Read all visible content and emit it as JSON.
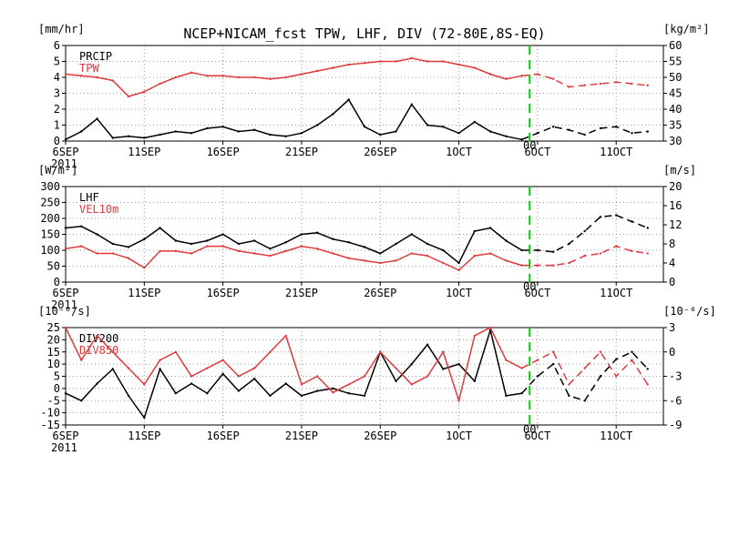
{
  "title": "NCEP+NICAM_fcst TPW, LHF, DIV (72-80E,8S-EQ)",
  "colors": {
    "black": "#000000",
    "red": "#e0393e",
    "forecast_line": "#00cc00"
  },
  "x_ticks": [
    "6SEP",
    "11SEP",
    "16SEP",
    "21SEP",
    "26SEP",
    "1OCT",
    "6OCT",
    "11OCT"
  ],
  "x_year": "2011",
  "forecast_label": "00",
  "chart_data": [
    {
      "type": "line",
      "left_unit": "[mm/hr]",
      "right_unit": "[kg/m²]",
      "left_ylim": [
        0,
        6
      ],
      "left_ticks": [
        "0",
        "1",
        "2",
        "3",
        "4",
        "5",
        "6"
      ],
      "right_ylim": [
        30,
        60
      ],
      "right_ticks": [
        "30",
        "35",
        "40",
        "45",
        "50",
        "55",
        "60"
      ],
      "x": [
        "6SEP",
        "7SEP",
        "8SEP",
        "9SEP",
        "10SEP",
        "11SEP",
        "12SEP",
        "13SEP",
        "14SEP",
        "15SEP",
        "16SEP",
        "17SEP",
        "18SEP",
        "19SEP",
        "20SEP",
        "21SEP",
        "22SEP",
        "23SEP",
        "24SEP",
        "25SEP",
        "26SEP",
        "27SEP",
        "28SEP",
        "29SEP",
        "30SEP",
        "1OCT",
        "2OCT",
        "3OCT",
        "4OCT",
        "5OCT",
        "6OCT",
        "7OCT",
        "8OCT",
        "9OCT",
        "10OCT",
        "11OCT",
        "12OCT",
        "13OCT"
      ],
      "series": [
        {
          "name": "PRCIP",
          "color": "#000000",
          "axis": "left",
          "values": [
            0.1,
            0.6,
            1.4,
            0.2,
            0.3,
            0.2,
            0.4,
            0.6,
            0.5,
            0.8,
            0.9,
            0.6,
            0.7,
            0.4,
            0.3,
            0.5,
            1.0,
            1.7,
            2.6,
            0.9,
            0.4,
            0.6,
            2.3,
            1.0,
            0.9,
            0.5,
            1.2,
            0.6,
            0.3,
            0.1,
            0.5,
            0.9,
            0.7,
            0.4,
            0.8,
            0.9,
            0.5,
            0.6
          ]
        },
        {
          "name": "TPW",
          "color": "#e0393e",
          "axis": "right",
          "values": [
            51.0,
            50.5,
            50.0,
            49.0,
            44.0,
            45.5,
            48.0,
            50.0,
            51.5,
            50.5,
            50.5,
            50.0,
            50.0,
            49.5,
            50.0,
            51.0,
            52.0,
            53.0,
            54.0,
            54.5,
            55.0,
            55.0,
            56.0,
            55.0,
            55.0,
            54.0,
            53.0,
            51.0,
            49.5,
            50.5,
            51.0,
            49.5,
            47.0,
            47.5,
            48.0,
            48.5,
            48.0,
            47.5
          ]
        }
      ]
    },
    {
      "type": "line",
      "left_unit": "[W/m²]",
      "right_unit": "[m/s]",
      "left_ylim": [
        0,
        300
      ],
      "left_ticks": [
        "0",
        "50",
        "100",
        "150",
        "200",
        "250",
        "300"
      ],
      "right_ylim": [
        0,
        20
      ],
      "right_ticks": [
        "0",
        "4",
        "8",
        "12",
        "16",
        "20"
      ],
      "x": [
        "6SEP",
        "7SEP",
        "8SEP",
        "9SEP",
        "10SEP",
        "11SEP",
        "12SEP",
        "13SEP",
        "14SEP",
        "15SEP",
        "16SEP",
        "17SEP",
        "18SEP",
        "19SEP",
        "20SEP",
        "21SEP",
        "22SEP",
        "23SEP",
        "24SEP",
        "25SEP",
        "26SEP",
        "27SEP",
        "28SEP",
        "29SEP",
        "30SEP",
        "1OCT",
        "2OCT",
        "3OCT",
        "4OCT",
        "5OCT",
        "6OCT",
        "7OCT",
        "8OCT",
        "9OCT",
        "10OCT",
        "11OCT",
        "12OCT",
        "13OCT"
      ],
      "series": [
        {
          "name": "LHF",
          "color": "#000000",
          "axis": "left",
          "values": [
            170,
            175,
            150,
            120,
            110,
            135,
            170,
            130,
            120,
            130,
            150,
            120,
            130,
            105,
            125,
            150,
            155,
            135,
            125,
            110,
            90,
            120,
            150,
            120,
            100,
            60,
            160,
            170,
            130,
            100,
            100,
            95,
            120,
            160,
            205,
            210,
            190,
            170
          ]
        },
        {
          "name": "VEL10m",
          "color": "#e0393e",
          "axis": "right",
          "values": [
            7.0,
            7.5,
            6.0,
            6.0,
            5.0,
            3.0,
            6.5,
            6.5,
            6.0,
            7.5,
            7.5,
            6.5,
            6.0,
            5.5,
            6.5,
            7.5,
            7.0,
            6.0,
            5.0,
            4.5,
            4.0,
            4.5,
            6.0,
            5.5,
            4.0,
            2.5,
            5.5,
            6.0,
            4.5,
            3.5,
            3.5,
            3.5,
            4.0,
            5.5,
            6.0,
            7.5,
            6.5,
            6.0
          ]
        }
      ]
    },
    {
      "type": "line",
      "left_unit": "[10⁻⁶/s]",
      "right_unit": "[10⁻⁶/s]",
      "left_ylim": [
        -15,
        25
      ],
      "left_ticks": [
        "-15",
        "-10",
        "-5",
        "0",
        "5",
        "10",
        "15",
        "20",
        "25"
      ],
      "right_ylim": [
        -9,
        3
      ],
      "right_ticks": [
        "-9",
        "-6",
        "-3",
        "0",
        "3"
      ],
      "x": [
        "6SEP",
        "7SEP",
        "8SEP",
        "9SEP",
        "10SEP",
        "11SEP",
        "12SEP",
        "13SEP",
        "14SEP",
        "15SEP",
        "16SEP",
        "17SEP",
        "18SEP",
        "19SEP",
        "20SEP",
        "21SEP",
        "22SEP",
        "23SEP",
        "24SEP",
        "25SEP",
        "26SEP",
        "27SEP",
        "28SEP",
        "29SEP",
        "30SEP",
        "1OCT",
        "2OCT",
        "3OCT",
        "4OCT",
        "5OCT",
        "6OCT",
        "7OCT",
        "8OCT",
        "9OCT",
        "10OCT",
        "11OCT",
        "12OCT",
        "13OCT"
      ],
      "series": [
        {
          "name": "DIV200",
          "color": "#000000",
          "axis": "left",
          "values": [
            -2,
            -5,
            2,
            8,
            -3,
            -12,
            8,
            -2,
            2,
            -2,
            6,
            -1,
            4,
            -3,
            2,
            -3,
            -1,
            0,
            -2,
            -3,
            15,
            3,
            10,
            18,
            8,
            10,
            3,
            24,
            -3,
            -2,
            5,
            10,
            -3,
            -5,
            5,
            12,
            15,
            8
          ]
        },
        {
          "name": "DIV850",
          "color": "#e0393e",
          "axis": "right",
          "values": [
            3,
            -1,
            2,
            0,
            -2,
            -4,
            -1,
            0,
            -3,
            -2,
            -1,
            -3,
            -2,
            0,
            2,
            -4,
            -3,
            -5,
            -4,
            -3,
            0,
            -2,
            -4,
            -3,
            0,
            -6,
            2,
            3,
            -1,
            -2,
            -1,
            0,
            -4,
            -2,
            0,
            -3,
            -1,
            -4
          ]
        }
      ]
    }
  ]
}
